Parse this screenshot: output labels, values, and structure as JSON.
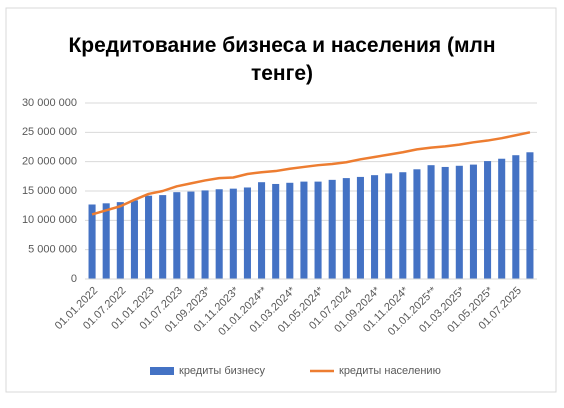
{
  "chart_data": {
    "type": "bar_line",
    "title": "Кредитование бизнеса и населения (млн тенге)",
    "categories": [
      "01.01.2022",
      null,
      "01.07.2022",
      null,
      "01.01.2023",
      null,
      "01.07.2023",
      null,
      "01.09.2023*",
      null,
      "01.11.2023*",
      null,
      "01.01.2024**",
      null,
      "01.03.2024*",
      null,
      "01.05.2024*",
      null,
      "01.07.2024",
      null,
      "01.09.2024*",
      null,
      "01.11.2024*",
      null,
      "01.01.2025**",
      null,
      "01.03.2025*",
      null,
      "01.05.2025*",
      null,
      "01.07.2025",
      null
    ],
    "series": [
      {
        "name": "кредиты бизнесу",
        "color": "#4472c4",
        "kind": "bar",
        "values": [
          12700000,
          12900000,
          13100000,
          13400000,
          14200000,
          14300000,
          14800000,
          14900000,
          15100000,
          15300000,
          15400000,
          15600000,
          16500000,
          16200000,
          16400000,
          16600000,
          16600000,
          16900000,
          17200000,
          17400000,
          17700000,
          18000000,
          18200000,
          18700000,
          19400000,
          19100000,
          19300000,
          19500000,
          20100000,
          20500000,
          21100000,
          21600000
        ]
      },
      {
        "name": "кредиты населению",
        "color": "#ed7d31",
        "kind": "line",
        "values": [
          11000000,
          11700000,
          12400000,
          13500000,
          14500000,
          15000000,
          15800000,
          16300000,
          16800000,
          17200000,
          17300000,
          17900000,
          18200000,
          18400000,
          18800000,
          19100000,
          19400000,
          19600000,
          19900000,
          20400000,
          20800000,
          21200000,
          21600000,
          22100000,
          22400000,
          22600000,
          22900000,
          23300000,
          23600000,
          24000000,
          24500000,
          25000000
        ]
      }
    ],
    "ylim": [
      0,
      30000000
    ],
    "yticks": [
      0,
      {
        "value": 5000000,
        "label": "5 000 000"
      },
      {
        "value": 10000000,
        "label": "10 000 000"
      },
      {
        "value": 15000000,
        "label": "15 000 000"
      },
      {
        "value": 20000000,
        "label": "20 000 000"
      },
      {
        "value": 25000000,
        "label": "25 000 000"
      },
      {
        "value": 30000000,
        "label": "30 000 000"
      }
    ],
    "grid": true,
    "legend": "bottom"
  }
}
